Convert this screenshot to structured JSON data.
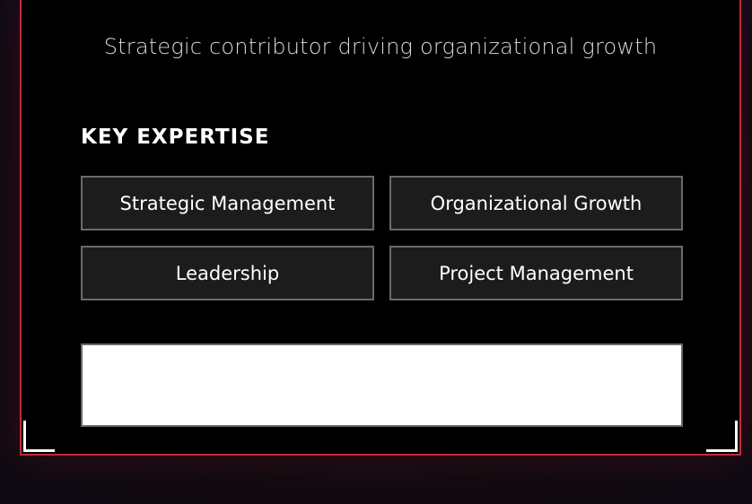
{
  "profile": {
    "tagline": "Strategic contributor driving organizational growth"
  },
  "expertise": {
    "title": "KEY EXPERTISE",
    "items": [
      {
        "label": "Strategic Management"
      },
      {
        "label": "Organizational Growth"
      },
      {
        "label": "Leadership"
      },
      {
        "label": "Project Management"
      }
    ]
  },
  "colors": {
    "accent": "#c4283a",
    "card_background": "#000000",
    "chip_background": "#1c1c1c",
    "chip_border": "#6a6a6a"
  }
}
